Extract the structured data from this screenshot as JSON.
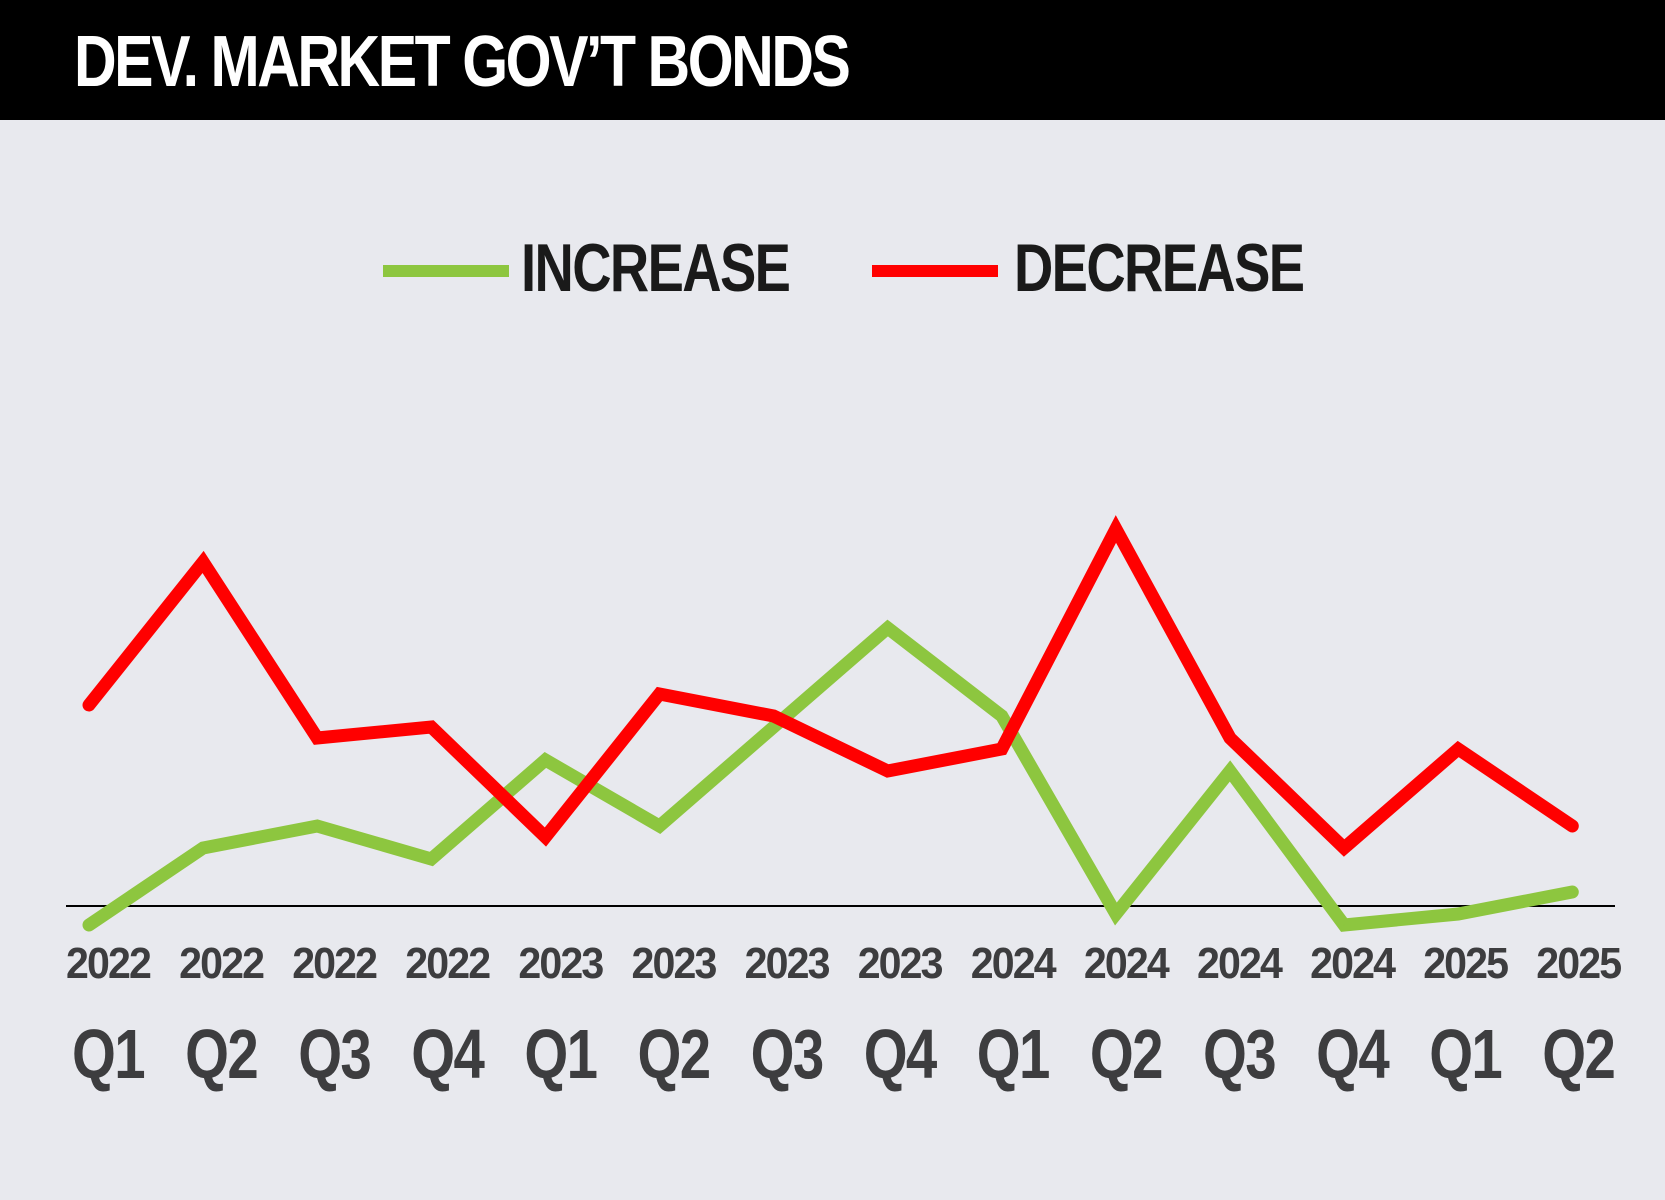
{
  "header": {
    "title": "DEV. MARKET GOV’T BONDS"
  },
  "colors": {
    "increase": "#8dc63f",
    "decrease": "#ff0000",
    "background": "#e8e9ee",
    "header": "#000000",
    "axis": "#000000"
  },
  "chart_data": {
    "type": "line",
    "title": "DEV. MARKET GOV’T BONDS",
    "xlabel": "",
    "ylabel": "",
    "grid": false,
    "legend": "top-center",
    "categories": [
      {
        "year": "2022",
        "quarter": "Q1"
      },
      {
        "year": "2022",
        "quarter": "Q2"
      },
      {
        "year": "2022",
        "quarter": "Q3"
      },
      {
        "year": "2022",
        "quarter": "Q4"
      },
      {
        "year": "2023",
        "quarter": "Q1"
      },
      {
        "year": "2023",
        "quarter": "Q2"
      },
      {
        "year": "2023",
        "quarter": "Q3"
      },
      {
        "year": "2023",
        "quarter": "Q4"
      },
      {
        "year": "2024",
        "quarter": "Q1"
      },
      {
        "year": "2024",
        "quarter": "Q2"
      },
      {
        "year": "2024",
        "quarter": "Q3"
      },
      {
        "year": "2024",
        "quarter": "Q4"
      },
      {
        "year": "2025",
        "quarter": "Q1"
      },
      {
        "year": "2025",
        "quarter": "Q2"
      }
    ],
    "ylim": [
      0,
      100
    ],
    "series": [
      {
        "name": "INCREASE",
        "color": "#8dc63f",
        "values": [
          25,
          32,
          34,
          31,
          40,
          34,
          43,
          52,
          44,
          26,
          39,
          25,
          26,
          28
        ]
      },
      {
        "name": "DECREASE",
        "color": "#ff0000",
        "values": [
          45,
          58,
          42,
          43,
          33,
          46,
          44,
          39,
          41,
          61,
          42,
          32,
          41,
          34
        ]
      }
    ]
  }
}
